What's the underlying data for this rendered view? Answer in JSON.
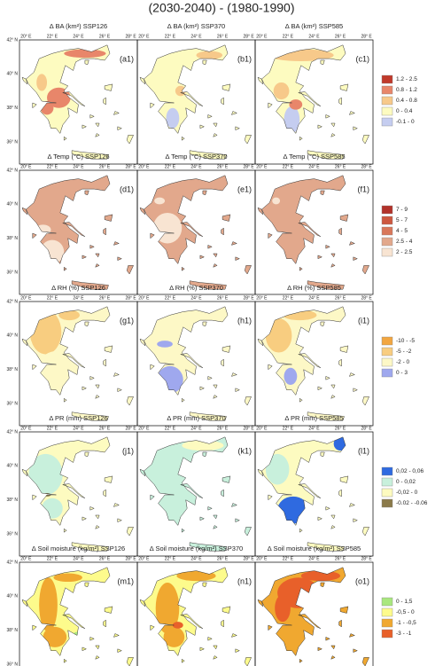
{
  "title": "(2030-2040) - (1980-1990)",
  "longitude_ticks": [
    "20° E",
    "22° E",
    "24° E",
    "26° E",
    "28° E"
  ],
  "latitude_ticks": [
    "42° N",
    "40° N",
    "38° N",
    "36° N"
  ],
  "rows": [
    {
      "panels": [
        {
          "title": "Δ BA (km²) SSP126",
          "label": "(a1)"
        },
        {
          "title": "Δ BA (km²) SSP370",
          "label": "(b1)"
        },
        {
          "title": "Δ BA (km²) SSP585",
          "label": "(c1)"
        }
      ],
      "legend": [
        {
          "label": "1.2 - 2.5",
          "color": "#c0392b"
        },
        {
          "label": "0.8 - 1.2",
          "color": "#e8866a"
        },
        {
          "label": "0.4 - 0.8",
          "color": "#f7c98a"
        },
        {
          "label": "0 - 0.4",
          "color": "#fdfbc0"
        },
        {
          "label": "-0.1 - 0",
          "color": "#c5cdf0"
        }
      ]
    },
    {
      "panels": [
        {
          "title": "Δ Temp (°C) SSP126",
          "label": "(d1)"
        },
        {
          "title": "Δ Temp (°C) SSP370",
          "label": "(e1)"
        },
        {
          "title": "Δ Temp (°C) SSP585",
          "label": "(f1)"
        }
      ],
      "legend": [
        {
          "label": "7 - 9",
          "color": "#b2322a"
        },
        {
          "label": "5 - 7",
          "color": "#cd5840"
        },
        {
          "label": "4 - 5",
          "color": "#d9775a"
        },
        {
          "label": "2.5 - 4",
          "color": "#e2a88c"
        },
        {
          "label": "2 - 2.5",
          "color": "#f8e4d2"
        }
      ]
    },
    {
      "panels": [
        {
          "title": "Δ RH (%) SSP126",
          "label": "(g1)"
        },
        {
          "title": "Δ RH (%) SSP370",
          "label": "(h1)"
        },
        {
          "title": "Δ RH (%) SSP585",
          "label": "(i1)"
        }
      ],
      "legend": [
        {
          "label": "-10 - -5",
          "color": "#f2a640"
        },
        {
          "label": "-5 - -2",
          "color": "#f8cd80"
        },
        {
          "label": "-2 - 0",
          "color": "#fdf8c6"
        },
        {
          "label": "0 - 3",
          "color": "#9fa8ee"
        }
      ]
    },
    {
      "panels": [
        {
          "title": "Δ PR (mm) SSP126",
          "label": "(j1)"
        },
        {
          "title": "Δ PR (mm) SSP370",
          "label": "(k1)"
        },
        {
          "title": "Δ PR (mm) SSP585",
          "label": "(l1)"
        }
      ],
      "legend": [
        {
          "label": "0,02 - 0,06",
          "color": "#2f6ae0"
        },
        {
          "label": "0 - 0,02",
          "color": "#c8f0dc"
        },
        {
          "label": "-0,02 - 0",
          "color": "#fdfbc0"
        },
        {
          "label": "-0.02 - -0.06",
          "color": "#8b7a4a"
        }
      ]
    },
    {
      "panels": [
        {
          "title": "Δ Soil moisture (kg/m²) SSP126",
          "label": "(m1)"
        },
        {
          "title": "Δ Soil moisture (kg/m²) SSP370",
          "label": "(n1)"
        },
        {
          "title": "Δ Soil moisture (kg/m²) SSP585",
          "label": "(o1)"
        }
      ],
      "legend": [
        {
          "label": "0 - 1,5",
          "color": "#a9e77e"
        },
        {
          "label": "-0,5 - 0",
          "color": "#fdfb8c"
        },
        {
          "label": "-1 - -0,5",
          "color": "#f0a830"
        },
        {
          "label": "-3 - -1",
          "color": "#e8602a"
        }
      ]
    }
  ]
}
